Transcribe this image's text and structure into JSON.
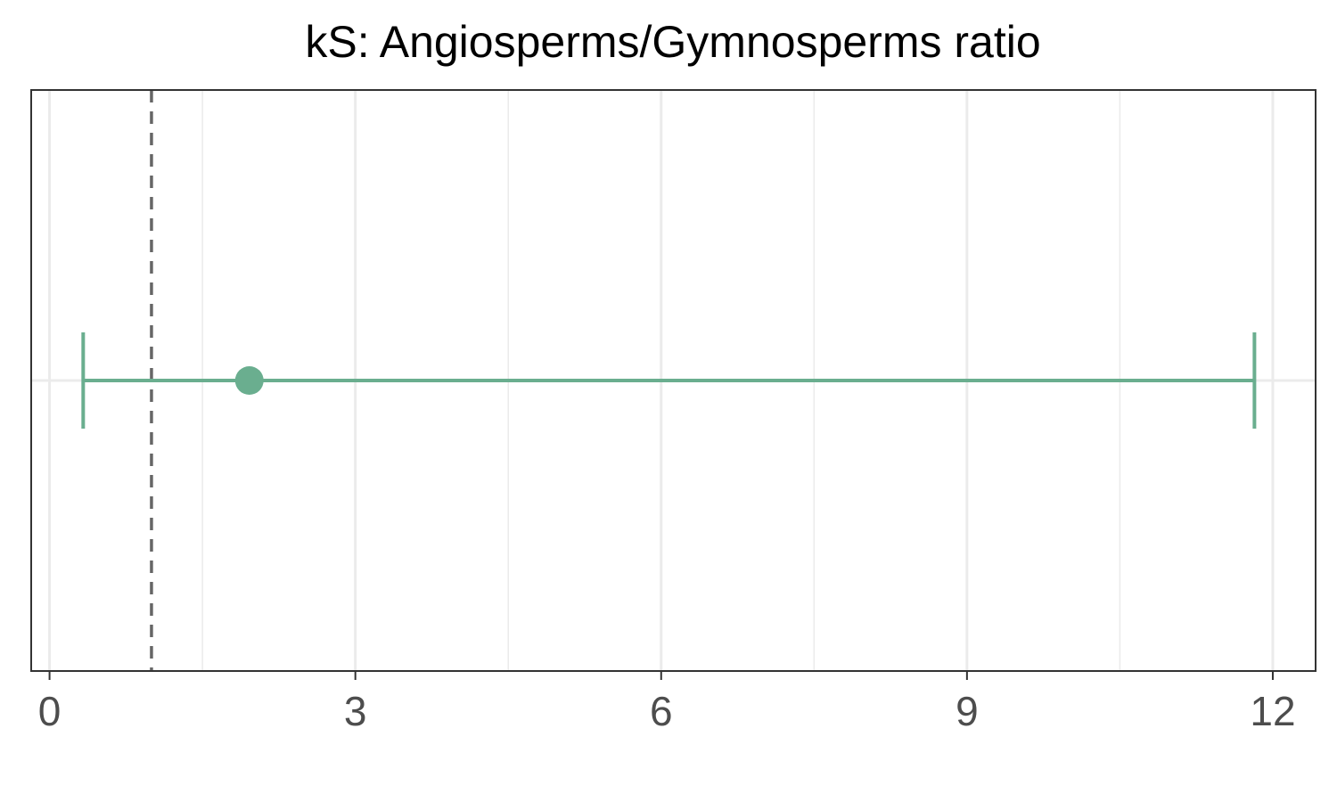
{
  "chart_data": {
    "type": "errorbar",
    "title": "kS: Angiosperms/Gymnosperms ratio",
    "xlabel": "",
    "ylabel": "",
    "xlim": [
      -0.18,
      12.42
    ],
    "x_ticks": [
      0,
      3,
      6,
      9,
      12
    ],
    "x_tick_labels": [
      "0",
      "3",
      "6",
      "9",
      "12"
    ],
    "x_minor_gridlines": [
      1.5,
      4.5,
      7.5,
      10.5
    ],
    "grid": true,
    "reference_line": {
      "x": 1,
      "style": "dashed",
      "color": "#666666"
    },
    "estimate": {
      "point": 1.96,
      "lower": 0.33,
      "upper": 11.82
    },
    "colors": {
      "series": "#6aae8f",
      "panel_border": "#333333",
      "grid": "#ebebeb",
      "tick_text": "#4d4d4d"
    }
  }
}
